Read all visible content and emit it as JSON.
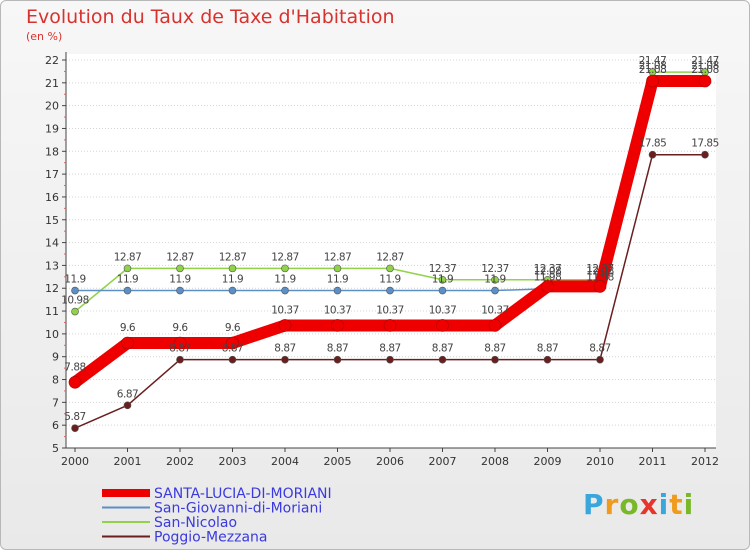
{
  "chart_data": {
    "type": "line",
    "title": "Evolution du Taux de Taxe d'Habitation",
    "subtitle": "(en %)",
    "xlabel": "",
    "ylabel": "",
    "ylim": [
      5,
      22
    ],
    "grid": true,
    "categories": [
      "2000",
      "2001",
      "2002",
      "2003",
      "2004",
      "2005",
      "2006",
      "2007",
      "2008",
      "2009",
      "2010",
      "2011",
      "2012"
    ],
    "yticks": [
      "5",
      "6",
      "7",
      "8",
      "9",
      "10",
      "11",
      "12",
      "13",
      "14",
      "15",
      "16",
      "17",
      "18",
      "19",
      "20",
      "21",
      "22"
    ],
    "series": [
      {
        "name": "SANTA-LUCIA-DI-MORIANI",
        "color": "#ee0000",
        "values": [
          7.88,
          9.6,
          9.6,
          9.6,
          10.37,
          10.37,
          10.37,
          10.37,
          10.37,
          12.08,
          12.08,
          21.08,
          21.08
        ],
        "labels": [
          "7.88",
          "9.6",
          "9.6",
          "9.6",
          "10.37",
          "10.37",
          "10.37",
          "10.37",
          "10.37",
          "12.08",
          "12.08",
          "21.08",
          "21.08"
        ]
      },
      {
        "name": "San-Giovanni-di-Moriani",
        "color": "#5b8fc5",
        "values": [
          11.9,
          11.9,
          11.9,
          11.9,
          11.9,
          11.9,
          11.9,
          11.9,
          11.9,
          11.98,
          11.98,
          21.08,
          21.08
        ],
        "labels": [
          "11.9",
          "11.9",
          "11.9",
          "11.9",
          "11.9",
          "11.9",
          "11.9",
          "11.9",
          "11.9",
          "11.98",
          "11.98",
          "21.08",
          "21.08"
        ]
      },
      {
        "name": "San-Nicolao",
        "color": "#90d24a",
        "values": [
          10.98,
          12.87,
          12.87,
          12.87,
          12.87,
          12.87,
          12.87,
          12.37,
          12.37,
          12.37,
          12.37,
          21.47,
          21.47
        ],
        "labels": [
          "10.98",
          "12.87",
          "12.87",
          "12.87",
          "12.87",
          "12.87",
          "12.87",
          "12.37",
          "12.37",
          "12.37",
          "12.37",
          "21.47",
          "21.47"
        ]
      },
      {
        "name": "Poggio-Mezzana",
        "color": "#6a1e1e",
        "values": [
          5.87,
          6.87,
          8.87,
          8.87,
          8.87,
          8.87,
          8.87,
          8.87,
          8.87,
          8.87,
          8.87,
          17.85,
          17.85
        ],
        "labels": [
          "5.87",
          "6.87",
          "8.87",
          "8.87",
          "8.87",
          "8.87",
          "8.87",
          "8.87",
          "8.87",
          "8.87",
          "8.87",
          "17.85",
          "17.85"
        ]
      }
    ]
  },
  "branding": {
    "logo_letters": [
      "P",
      "r",
      "o",
      "x",
      "i",
      "t",
      "i"
    ],
    "logo_colors": [
      "#3aa7dc",
      "#f19b1c",
      "#79b829",
      "#e8352b",
      "#3aa7dc",
      "#f19b1c",
      "#79b829"
    ]
  }
}
